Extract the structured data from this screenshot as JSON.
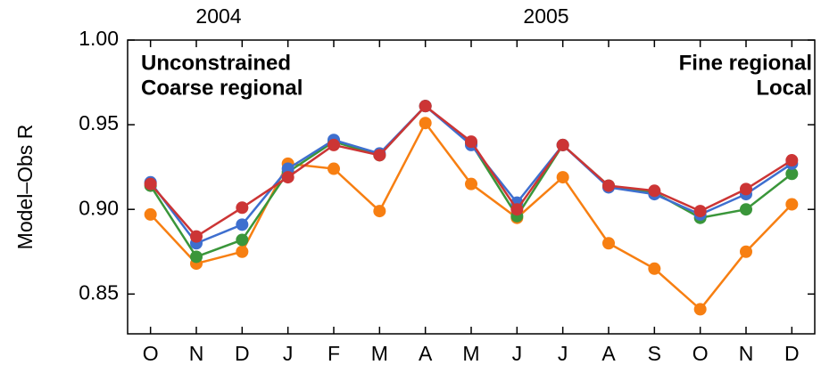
{
  "chart_data": {
    "type": "line",
    "ylabel": "Model–Obs R",
    "year_labels": [
      "2004",
      "2005"
    ],
    "categories": [
      "O",
      "N",
      "D",
      "J",
      "F",
      "M",
      "A",
      "M",
      "J",
      "J",
      "A",
      "S",
      "O",
      "N",
      "D"
    ],
    "series": [
      {
        "name": "Unconstrained",
        "color": "#f77f12",
        "values": [
          0.897,
          0.868,
          0.875,
          0.927,
          0.924,
          0.899,
          0.951,
          0.915,
          0.895,
          0.919,
          0.88,
          0.865,
          0.841,
          0.875,
          0.903
        ]
      },
      {
        "name": "Coarse regional",
        "color": "#3a963a",
        "values": [
          0.914,
          0.872,
          0.882,
          0.922,
          0.94,
          0.932,
          0.961,
          0.939,
          0.896,
          0.938,
          0.914,
          0.91,
          0.895,
          0.9,
          0.921
        ]
      },
      {
        "name": "Fine regional",
        "color": "#3e6fcf",
        "values": [
          0.916,
          0.88,
          0.891,
          0.924,
          0.941,
          0.933,
          0.961,
          0.938,
          0.904,
          0.938,
          0.913,
          0.909,
          0.897,
          0.909,
          0.927
        ]
      },
      {
        "name": "Local",
        "color": "#cc3535",
        "values": [
          0.915,
          0.884,
          0.901,
          0.919,
          0.938,
          0.932,
          0.961,
          0.94,
          0.9,
          0.938,
          0.914,
          0.911,
          0.899,
          0.912,
          0.929
        ]
      }
    ],
    "ylim": [
      0.8265,
      1.0
    ],
    "yticks": [
      {
        "value": 0.85,
        "label": "0.85"
      },
      {
        "value": 0.9,
        "label": "0.90"
      },
      {
        "value": 0.95,
        "label": "0.95"
      },
      {
        "value": 1.0,
        "label": "1.00"
      }
    ]
  }
}
